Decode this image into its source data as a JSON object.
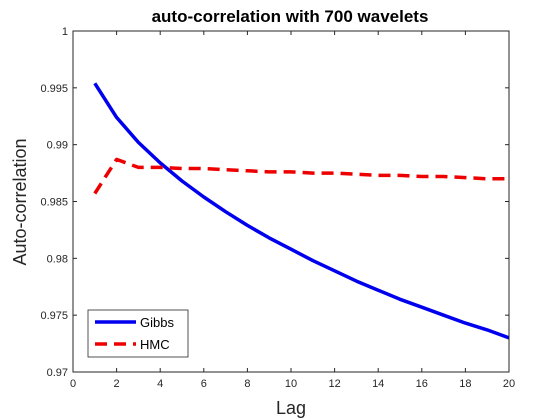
{
  "chart_data": {
    "type": "line",
    "title": "auto-correlation with 700 wavelets",
    "xlabel": "Lag",
    "ylabel": "Auto-correlation",
    "xlim": [
      0,
      20
    ],
    "ylim": [
      0.97,
      1.0
    ],
    "xticks": [
      "0",
      "2",
      "4",
      "6",
      "8",
      "10",
      "12",
      "14",
      "16",
      "18",
      "20"
    ],
    "yticks": [
      "0.97",
      "0.975",
      "0.98",
      "0.985",
      "0.99",
      "0.995",
      "1"
    ],
    "grid": false,
    "legend_placement": "bottom-left",
    "series": [
      {
        "name": "Gibbs",
        "color": "#0000ee",
        "style": "solid",
        "x": [
          1,
          2,
          3,
          4,
          5,
          6,
          7,
          8,
          9,
          10,
          11,
          12,
          13,
          14,
          15,
          16,
          17,
          18,
          19,
          20
        ],
        "values": [
          0.9954,
          0.9924,
          0.9902,
          0.9884,
          0.9868,
          0.9854,
          0.9841,
          0.9829,
          0.9818,
          0.9808,
          0.9798,
          0.9789,
          0.978,
          0.9772,
          0.9764,
          0.9757,
          0.975,
          0.9743,
          0.9737,
          0.973
        ]
      },
      {
        "name": "HMC",
        "color": "#ee0000",
        "style": "dashed",
        "x": [
          1,
          2,
          3,
          4,
          5,
          6,
          7,
          8,
          9,
          10,
          11,
          12,
          13,
          14,
          15,
          16,
          17,
          18,
          19,
          20
        ],
        "values": [
          0.9857,
          0.9887,
          0.988,
          0.988,
          0.9879,
          0.9879,
          0.9878,
          0.9877,
          0.9876,
          0.9876,
          0.9875,
          0.9875,
          0.9874,
          0.9873,
          0.9873,
          0.9872,
          0.9872,
          0.9871,
          0.987,
          0.987
        ]
      }
    ]
  }
}
